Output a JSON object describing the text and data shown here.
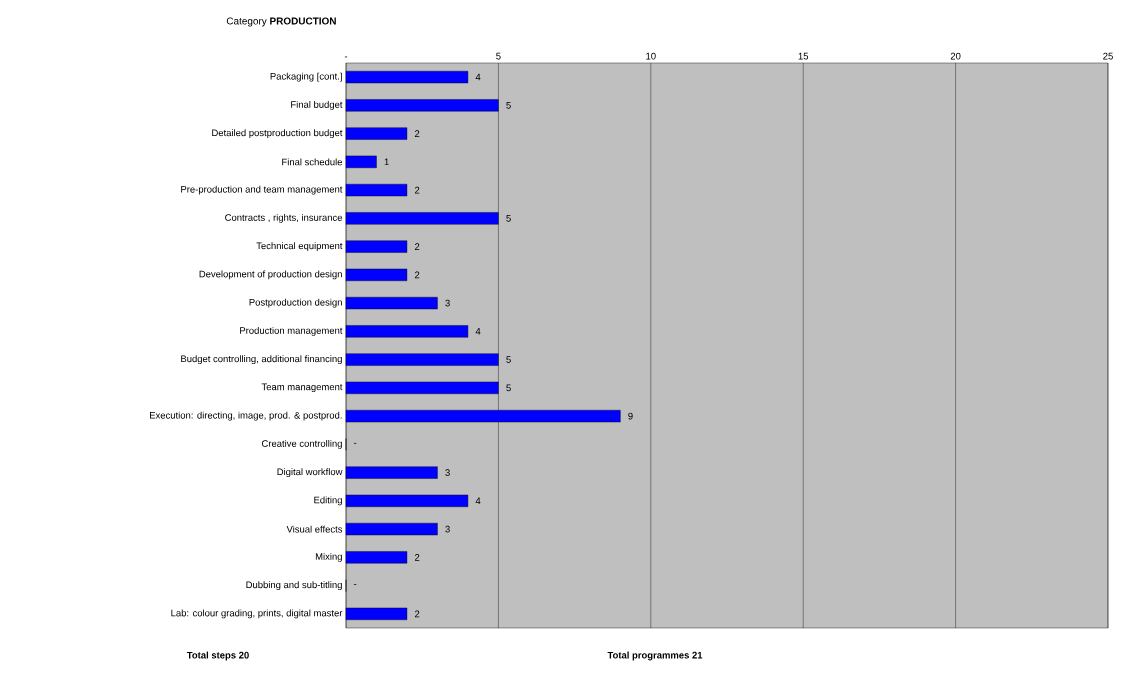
{
  "chart_data": {
    "type": "bar",
    "orientation": "horizontal",
    "title": "Category **PRODUCTION**",
    "categories": [
      "Packaging [cont.]",
      "Final budget",
      "Detailed postproduction budget",
      "Final schedule",
      "Pre-production and team management",
      "Contracts , rights, insurance",
      "Technical equipment",
      "Development of production design",
      "Postproduction design",
      "Production management",
      "Budget controlling, additional financing",
      "Team management",
      "Execution: directing, image, prod. & postprod.",
      "Creative controlling",
      "Digital workflow",
      "Editing",
      "Visual effects",
      "Mixing",
      "Dubbing and sub-titling",
      "Lab: colour grading, prints, digital master"
    ],
    "values": [
      4,
      5,
      2,
      1,
      2,
      5,
      2,
      2,
      3,
      4,
      5,
      5,
      9,
      0,
      3,
      4,
      3,
      2,
      0,
      2
    ],
    "value_labels": [
      "4",
      "5",
      "2",
      "1",
      "2",
      "5",
      "2",
      "2",
      "3",
      "4",
      "5",
      "5",
      "9",
      "-",
      "3",
      "4",
      "3",
      "2",
      "-",
      "2"
    ],
    "color": "#0000ff",
    "xlim": [
      0,
      25
    ],
    "xticks": [
      {
        "value": 0,
        "label": "-"
      },
      5,
      10,
      15,
      20,
      25
    ],
    "grid": "x",
    "annotations": [
      "Total steps  20",
      "Total programmes  21"
    ]
  }
}
